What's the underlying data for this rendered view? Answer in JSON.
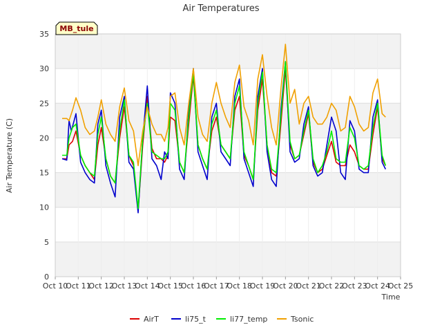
{
  "chart_data": {
    "type": "line",
    "title": "Air Temperatures",
    "xlabel": "Time",
    "ylabel": "Air Temperature (C)",
    "site_label": "MB_tule",
    "ylim": [
      0,
      35
    ],
    "xlim": [
      0,
      15
    ],
    "y_ticks": [
      0,
      5,
      10,
      15,
      20,
      25,
      30,
      35
    ],
    "x_ticks": [
      0,
      1,
      2,
      3,
      4,
      5,
      6,
      7,
      8,
      9,
      10,
      11,
      12,
      13,
      14,
      15
    ],
    "x_tick_labels": [
      "Oct 10",
      "Oct 11",
      "Oct 12",
      "Oct 13",
      "Oct 14",
      "Oct 15",
      "Oct 16",
      "Oct 17",
      "Oct 18",
      "Oct 19",
      "Oct 20",
      "Oct 21",
      "Oct 22",
      "Oct 23",
      "Oct 24",
      "Oct 25"
    ],
    "grid": true,
    "legend_position": "bottom",
    "x_unit_note": "",
    "series": [
      {
        "name": "AirT",
        "color": "#dd0000",
        "x": [
          0.3,
          0.5,
          0.6,
          0.75,
          0.9,
          1.1,
          1.3,
          1.5,
          1.7,
          1.85,
          2.0,
          2.2,
          2.4,
          2.6,
          2.8,
          3.0,
          3.2,
          3.4,
          3.6,
          3.8,
          4.0,
          4.2,
          4.4,
          4.6,
          4.75,
          4.9,
          5.0,
          5.2,
          5.4,
          5.6,
          5.8,
          6.0,
          6.2,
          6.4,
          6.6,
          6.8,
          7.0,
          7.2,
          7.4,
          7.6,
          7.8,
          8.0,
          8.2,
          8.4,
          8.6,
          8.8,
          9.0,
          9.2,
          9.4,
          9.6,
          9.8,
          10.0,
          10.2,
          10.4,
          10.6,
          10.8,
          11.0,
          11.2,
          11.4,
          11.6,
          11.8,
          12.0,
          12.2,
          12.4,
          12.6,
          12.8,
          13.0,
          13.2,
          13.4,
          13.6,
          13.8,
          14.0,
          14.2,
          14.35
        ],
        "y": [
          17.0,
          17.0,
          19.0,
          19.5,
          21.0,
          17.5,
          16.0,
          15.0,
          14.0,
          19.0,
          21.5,
          17.0,
          14.5,
          13.5,
          20.0,
          24.5,
          17.5,
          16.0,
          9.5,
          19.0,
          26.0,
          18.5,
          17.0,
          17.0,
          16.5,
          17.5,
          23.0,
          22.5,
          16.5,
          15.0,
          22.0,
          29.0,
          19.0,
          17.0,
          15.5,
          21.0,
          23.0,
          19.0,
          18.0,
          17.0,
          24.0,
          26.0,
          17.5,
          16.0,
          14.0,
          24.0,
          28.5,
          19.0,
          15.0,
          14.5,
          22.0,
          30.0,
          19.0,
          17.0,
          17.5,
          20.5,
          23.5,
          16.5,
          15.0,
          15.5,
          17.5,
          19.5,
          16.5,
          16.0,
          16.0,
          19.0,
          18.0,
          16.0,
          15.5,
          15.5,
          20.5,
          24.5,
          17.0,
          16.0
        ]
      },
      {
        "name": "li75_t",
        "color": "#0000cc",
        "x": [
          0.3,
          0.5,
          0.6,
          0.7,
          0.9,
          1.1,
          1.3,
          1.5,
          1.7,
          1.85,
          2.0,
          2.2,
          2.4,
          2.6,
          2.8,
          3.0,
          3.2,
          3.4,
          3.6,
          3.8,
          4.0,
          4.2,
          4.4,
          4.6,
          4.75,
          4.9,
          5.0,
          5.2,
          5.4,
          5.6,
          5.8,
          6.0,
          6.2,
          6.4,
          6.6,
          6.8,
          7.0,
          7.2,
          7.4,
          7.6,
          7.8,
          8.0,
          8.2,
          8.4,
          8.6,
          8.8,
          9.0,
          9.2,
          9.4,
          9.6,
          9.8,
          10.0,
          10.2,
          10.4,
          10.6,
          10.8,
          11.0,
          11.2,
          11.4,
          11.6,
          11.8,
          12.0,
          12.2,
          12.4,
          12.6,
          12.8,
          13.0,
          13.2,
          13.4,
          13.6,
          13.8,
          14.0,
          14.2,
          14.35
        ],
        "y": [
          17.0,
          16.8,
          22.5,
          21.0,
          23.5,
          16.5,
          15.0,
          14.0,
          13.5,
          22.0,
          24.0,
          16.0,
          13.5,
          11.5,
          23.0,
          26.0,
          16.5,
          15.5,
          9.2,
          20.0,
          27.5,
          17.0,
          16.0,
          14.0,
          18.0,
          17.0,
          26.5,
          25.0,
          15.5,
          14.0,
          24.0,
          30.0,
          18.0,
          16.0,
          14.0,
          23.0,
          25.0,
          18.0,
          17.0,
          16.0,
          26.0,
          28.5,
          17.0,
          15.0,
          13.0,
          26.0,
          30.0,
          18.0,
          14.0,
          13.0,
          24.0,
          31.0,
          18.0,
          16.5,
          17.0,
          22.0,
          24.5,
          16.0,
          14.5,
          15.0,
          19.0,
          23.0,
          21.0,
          15.0,
          14.0,
          22.5,
          21.0,
          15.5,
          15.0,
          15.0,
          23.0,
          25.5,
          16.5,
          15.5
        ]
      },
      {
        "name": "li77_temp",
        "color": "#00ee00",
        "x": [
          0.3,
          0.5,
          0.6,
          0.75,
          0.9,
          1.1,
          1.3,
          1.5,
          1.7,
          1.85,
          2.0,
          2.2,
          2.4,
          2.6,
          2.8,
          3.0,
          3.2,
          3.4,
          3.6,
          3.8,
          4.0,
          4.2,
          4.4,
          4.6,
          4.75,
          4.9,
          5.0,
          5.2,
          5.4,
          5.6,
          5.8,
          6.0,
          6.2,
          6.4,
          6.6,
          6.8,
          7.0,
          7.2,
          7.4,
          7.6,
          7.8,
          8.0,
          8.2,
          8.4,
          8.6,
          8.8,
          9.0,
          9.2,
          9.4,
          9.6,
          9.8,
          10.0,
          10.2,
          10.4,
          10.6,
          10.8,
          11.0,
          11.2,
          11.4,
          11.6,
          11.8,
          12.0,
          12.2,
          12.4,
          12.6,
          12.8,
          13.0,
          13.2,
          13.4,
          13.6,
          13.8,
          14.0,
          14.2,
          14.35
        ],
        "y": [
          17.5,
          17.5,
          20.0,
          21.5,
          22.0,
          17.5,
          16.0,
          15.0,
          14.5,
          20.5,
          23.0,
          17.0,
          14.5,
          13.5,
          21.0,
          25.5,
          17.5,
          16.5,
          9.8,
          20.0,
          25.0,
          18.0,
          17.5,
          17.0,
          17.0,
          18.0,
          25.0,
          24.0,
          16.5,
          15.0,
          23.0,
          29.5,
          19.0,
          17.0,
          15.5,
          22.0,
          24.0,
          19.0,
          18.0,
          17.0,
          25.0,
          27.5,
          18.0,
          16.0,
          14.0,
          25.0,
          29.5,
          19.0,
          15.5,
          15.0,
          23.0,
          31.0,
          19.5,
          17.0,
          17.5,
          21.0,
          24.0,
          17.0,
          15.0,
          16.0,
          18.0,
          21.0,
          17.0,
          16.5,
          16.5,
          21.5,
          20.0,
          16.0,
          15.5,
          16.0,
          21.5,
          25.0,
          17.5,
          16.0
        ]
      },
      {
        "name": "Tsonic",
        "color": "#f0a000",
        "x": [
          0.3,
          0.5,
          0.6,
          0.75,
          0.9,
          1.1,
          1.3,
          1.5,
          1.7,
          1.85,
          2.0,
          2.2,
          2.4,
          2.6,
          2.8,
          3.0,
          3.2,
          3.4,
          3.6,
          3.8,
          4.0,
          4.2,
          4.4,
          4.6,
          4.75,
          4.9,
          5.0,
          5.2,
          5.4,
          5.6,
          5.8,
          6.0,
          6.2,
          6.4,
          6.6,
          6.8,
          7.0,
          7.2,
          7.4,
          7.6,
          7.8,
          8.0,
          8.2,
          8.4,
          8.6,
          8.8,
          9.0,
          9.2,
          9.4,
          9.6,
          9.8,
          10.0,
          10.2,
          10.4,
          10.6,
          10.8,
          11.0,
          11.2,
          11.4,
          11.6,
          11.8,
          12.0,
          12.2,
          12.4,
          12.6,
          12.8,
          13.0,
          13.2,
          13.4,
          13.6,
          13.8,
          14.0,
          14.2,
          14.35
        ],
        "y": [
          22.8,
          22.8,
          22.5,
          24.0,
          25.8,
          24.0,
          21.5,
          20.5,
          21.0,
          23.0,
          25.5,
          22.0,
          20.5,
          19.5,
          24.5,
          27.2,
          22.5,
          21.0,
          16.0,
          21.0,
          24.5,
          22.0,
          20.5,
          20.5,
          19.5,
          21.5,
          26.0,
          26.5,
          21.5,
          19.0,
          25.0,
          30.0,
          23.0,
          20.5,
          19.5,
          25.0,
          28.0,
          25.0,
          23.0,
          21.5,
          28.0,
          30.5,
          24.5,
          22.5,
          19.0,
          28.5,
          32.0,
          26.0,
          21.5,
          19.0,
          27.0,
          33.5,
          25.0,
          27.0,
          22.0,
          25.0,
          26.0,
          23.0,
          22.0,
          22.0,
          23.0,
          25.0,
          24.0,
          21.0,
          21.5,
          26.0,
          24.5,
          22.0,
          21.0,
          21.5,
          26.5,
          28.5,
          23.5,
          23.0
        ]
      }
    ]
  }
}
